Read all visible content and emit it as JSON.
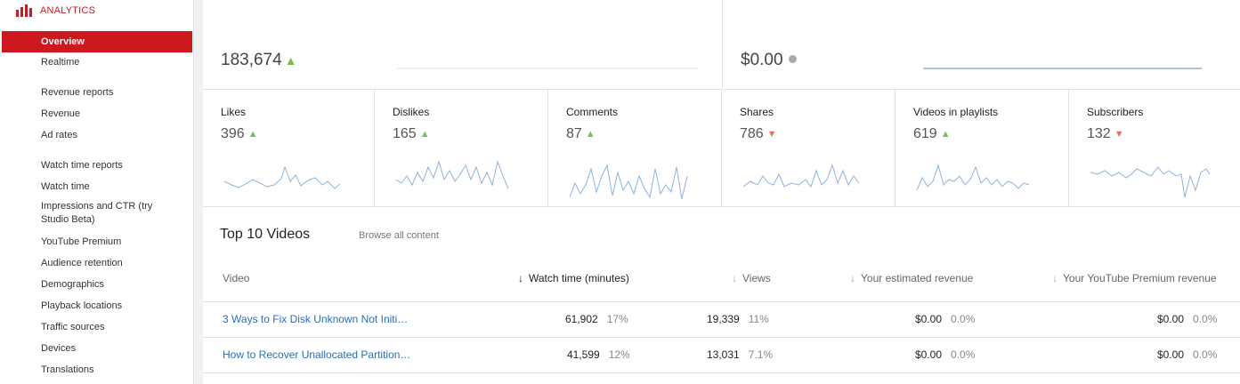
{
  "app": {
    "title": "ANALYTICS",
    "accent_color": "#cc181e",
    "icon": "analytics-bars-icon"
  },
  "sidebar": {
    "items": [
      {
        "label": "Overview",
        "active": true
      },
      {
        "label": "Realtime"
      },
      {
        "label": "Revenue reports"
      },
      {
        "label": "Revenue"
      },
      {
        "label": "Ad rates"
      },
      {
        "label": "Watch time reports"
      },
      {
        "label": "Watch time"
      },
      {
        "label": "Impressions and CTR (try Studio Beta)"
      },
      {
        "label": "YouTube Premium"
      },
      {
        "label": "Audience retention"
      },
      {
        "label": "Demographics"
      },
      {
        "label": "Playback locations"
      },
      {
        "label": "Traffic sources"
      },
      {
        "label": "Devices"
      },
      {
        "label": "Translations"
      }
    ]
  },
  "summary": {
    "left": {
      "value": "183,674",
      "trend": "up"
    },
    "right": {
      "value": "$0.00",
      "trend": "neutral"
    }
  },
  "metrics": [
    {
      "label": "Likes",
      "value": "396",
      "trend": "up"
    },
    {
      "label": "Dislikes",
      "value": "165",
      "trend": "up"
    },
    {
      "label": "Comments",
      "value": "87",
      "trend": "up"
    },
    {
      "label": "Shares",
      "value": "786",
      "trend": "down"
    },
    {
      "label": "Videos in playlists",
      "value": "619",
      "trend": "up"
    },
    {
      "label": "Subscribers",
      "value": "132",
      "trend": "down"
    }
  ],
  "trend_colors": {
    "up": "#7cbb55",
    "down": "#e7735d",
    "neutral": "#aaaaaa",
    "spark": "#8fb3dd"
  },
  "top_videos": {
    "title": "Top 10 Videos",
    "browse_link": "Browse all content",
    "columns": {
      "video": "Video",
      "watch_time": "Watch time (minutes)",
      "views": "Views",
      "est_revenue": "Your estimated revenue",
      "premium_revenue": "Your YouTube Premium revenue"
    },
    "rows": [
      {
        "title": "3 Ways to Fix Disk Unknown Not Initi…",
        "watch_time": "61,902",
        "watch_time_pct": "17%",
        "views": "19,339",
        "views_pct": "11%",
        "est_revenue": "$0.00",
        "est_revenue_pct": "0.0%",
        "premium_revenue": "$0.00",
        "premium_revenue_pct": "0.0%"
      },
      {
        "title": "How to Recover Unallocated Partition…",
        "watch_time": "41,599",
        "watch_time_pct": "12%",
        "views": "13,031",
        "views_pct": "7.1%",
        "est_revenue": "$0.00",
        "est_revenue_pct": "0.0%",
        "premium_revenue": "$0.00",
        "premium_revenue_pct": "0.0%"
      }
    ]
  }
}
